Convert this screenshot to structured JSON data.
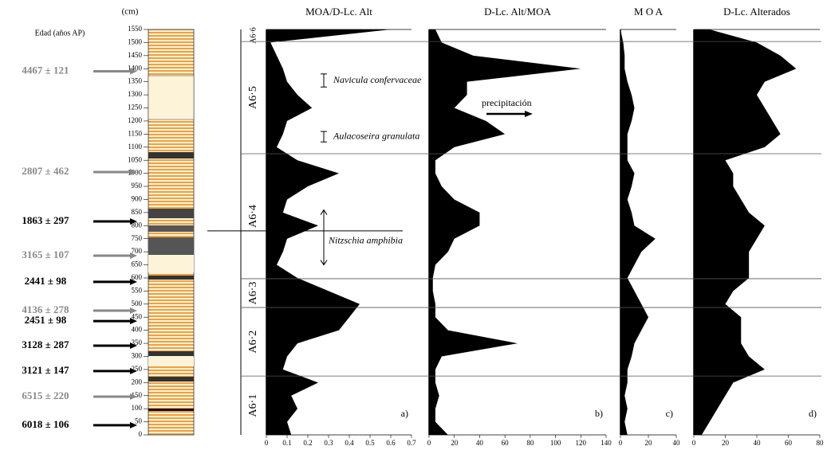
{
  "chart_data": {
    "type": "area",
    "y_label": "(cm)",
    "age_label": "Edad (años AP)",
    "ylim": [
      0,
      1550
    ],
    "yticks": [
      0,
      50,
      100,
      150,
      200,
      250,
      300,
      350,
      400,
      450,
      500,
      550,
      600,
      650,
      700,
      750,
      800,
      850,
      900,
      950,
      1000,
      1050,
      1100,
      1150,
      1200,
      1250,
      1300,
      1350,
      1400,
      1450,
      1500,
      1550
    ],
    "depths": [
      0,
      50,
      100,
      150,
      200,
      250,
      300,
      350,
      400,
      450,
      500,
      550,
      600,
      650,
      700,
      750,
      800,
      850,
      900,
      950,
      1000,
      1050,
      1100,
      1150,
      1200,
      1250,
      1300,
      1350,
      1400,
      1450,
      1500,
      1550
    ],
    "series": [
      {
        "name": "MOA/D-Lc. Alt",
        "letter": "a)",
        "color": "#000000",
        "xlim": [
          0,
          0.7
        ],
        "xticks": [
          0,
          0.1,
          0.2,
          0.3,
          0.4,
          0.5,
          0.6,
          0.7
        ],
        "values": [
          0.12,
          0.1,
          0.15,
          0.12,
          0.25,
          0.08,
          0.1,
          0.15,
          0.35,
          0.4,
          0.45,
          0.3,
          0.15,
          0.05,
          0.08,
          0.1,
          0.25,
          0.08,
          0.1,
          0.2,
          0.35,
          0.15,
          0.05,
          0.08,
          0.1,
          0.22,
          0.15,
          0.1,
          0.08,
          0.05,
          0.02,
          0.6
        ]
      },
      {
        "name": "D-Lc. Alt/MOA",
        "letter": "b)",
        "color": "#000000",
        "xlim": [
          0,
          140
        ],
        "xticks": [
          0,
          20,
          40,
          60,
          80,
          100,
          120,
          140
        ],
        "values": [
          15,
          5,
          5,
          8,
          5,
          5,
          10,
          70,
          15,
          5,
          5,
          3,
          3,
          5,
          15,
          20,
          40,
          40,
          20,
          10,
          5,
          5,
          20,
          60,
          45,
          20,
          30,
          30,
          120,
          35,
          10,
          5
        ]
      },
      {
        "name": "M O A",
        "letter": "c)",
        "color": "#000000",
        "xlim": [
          0,
          40
        ],
        "xticks": [
          0,
          20,
          40
        ],
        "values": [
          5,
          3,
          5,
          3,
          5,
          5,
          8,
          10,
          15,
          20,
          15,
          10,
          5,
          10,
          15,
          25,
          10,
          8,
          5,
          8,
          10,
          5,
          5,
          5,
          8,
          10,
          8,
          5,
          3,
          3,
          2,
          0
        ]
      },
      {
        "name": "D-Lc. Alterados",
        "letter": "d)",
        "color": "#000000",
        "xlim": [
          0,
          80
        ],
        "xticks": [
          0,
          20,
          40,
          60,
          80
        ],
        "values": [
          5,
          10,
          15,
          20,
          25,
          45,
          35,
          30,
          30,
          30,
          20,
          25,
          35,
          35,
          35,
          40,
          45,
          35,
          30,
          25,
          25,
          20,
          45,
          55,
          50,
          45,
          40,
          45,
          65,
          55,
          40,
          10
        ]
      }
    ],
    "ages": [
      {
        "label": "4467 ± 121",
        "depth": 1390,
        "color": "#888888"
      },
      {
        "label": "2807 ± 462",
        "depth": 1005,
        "color": "#888888"
      },
      {
        "label": "1863 ± 297",
        "depth": 816,
        "color": "#000000"
      },
      {
        "label": "3165 ± 107",
        "depth": 685,
        "color": "#888888"
      },
      {
        "label": "2441 ±  98",
        "depth": 585,
        "color": "#000000"
      },
      {
        "label": "4136 ± 278",
        "depth": 475,
        "color": "#888888"
      },
      {
        "label": "2451 ±  98",
        "depth": 435,
        "color": "#000000"
      },
      {
        "label": "3128 ± 287",
        "depth": 341,
        "color": "#000000"
      },
      {
        "label": "3121 ± 147",
        "depth": 244,
        "color": "#000000"
      },
      {
        "label": "6515 ± 220",
        "depth": 146,
        "color": "#888888"
      },
      {
        "label": "6018 ± 106",
        "depth": 37,
        "color": "#000000"
      }
    ],
    "zones": [
      {
        "name": "A6·1",
        "from": 0,
        "to": 225
      },
      {
        "name": "A6·2",
        "from": 225,
        "to": 487
      },
      {
        "name": "A6·3",
        "from": 487,
        "to": 597
      },
      {
        "name": "A6·4",
        "from": 597,
        "to": 1075
      },
      {
        "name": "A6·5",
        "from": 1075,
        "to": 1504
      },
      {
        "name": "A6·6",
        "from": 1504,
        "to": 1550
      }
    ],
    "taxa": [
      {
        "name": "Navicula confervaceae",
        "from": 1330,
        "to": 1380
      },
      {
        "name": "Aulacoseira granulata",
        "from": 1120,
        "to": 1160
      },
      {
        "name": "Nitzschia amphibia",
        "from": 650,
        "to": 860
      }
    ],
    "note": "precipitación"
  }
}
